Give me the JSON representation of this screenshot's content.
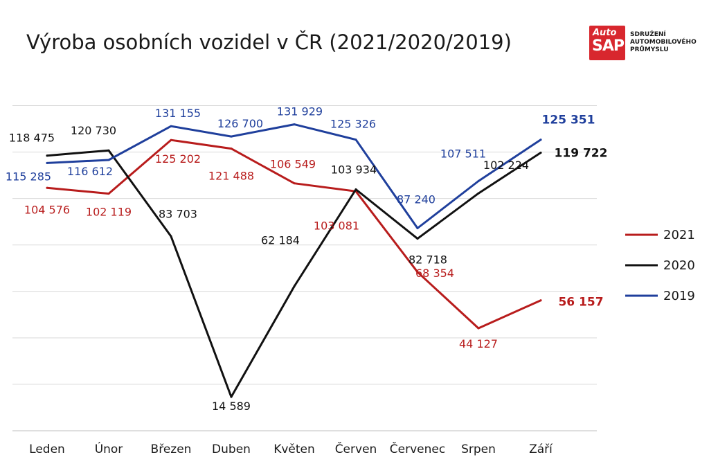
{
  "title": "Výroba osobních vozidel v ČR (2021/2020/2019)",
  "logo": {
    "auto": "Auto",
    "sap": "SAP",
    "org_line1": "SDRUŽENÍ",
    "org_line2": "AUTOMOBILOVÉHO",
    "org_line3": "PRŮMYSLU",
    "color": "#d8272e"
  },
  "chart_data": {
    "type": "line",
    "categories": [
      "Leden",
      "Únor",
      "Březen",
      "Duben",
      "Květen",
      "Červen",
      "Červenec",
      "Srpen",
      "Září"
    ],
    "ylim": [
      0,
      150000
    ],
    "grid": true,
    "legend_position": "right",
    "series": [
      {
        "name": "2021",
        "color": "#b81c1c",
        "values": [
          104576,
          102119,
          125202,
          121488,
          106549,
          103081,
          68354,
          44127,
          56157
        ],
        "labels": [
          "104 576",
          "102 119",
          "125 202",
          "121 488",
          "106 549",
          "103 081",
          "68 354",
          "44 127",
          "56 157"
        ]
      },
      {
        "name": "2020",
        "color": "#111111",
        "values": [
          118475,
          120730,
          83703,
          14589,
          62184,
          103934,
          82718,
          102224,
          119722
        ],
        "labels": [
          "118 475",
          "120 730",
          "83 703",
          "14 589",
          "62 184",
          "103 934",
          "82 718",
          "102 224",
          "119 722"
        ]
      },
      {
        "name": "2019",
        "color": "#1f3f9c",
        "values": [
          115285,
          116612,
          131155,
          126700,
          131929,
          125326,
          87240,
          107511,
          125351
        ],
        "labels": [
          "115 285",
          "116 612",
          "131 155",
          "126 700",
          "131 929",
          "125 326",
          "87 240",
          "107 511",
          "125 351"
        ]
      }
    ]
  }
}
